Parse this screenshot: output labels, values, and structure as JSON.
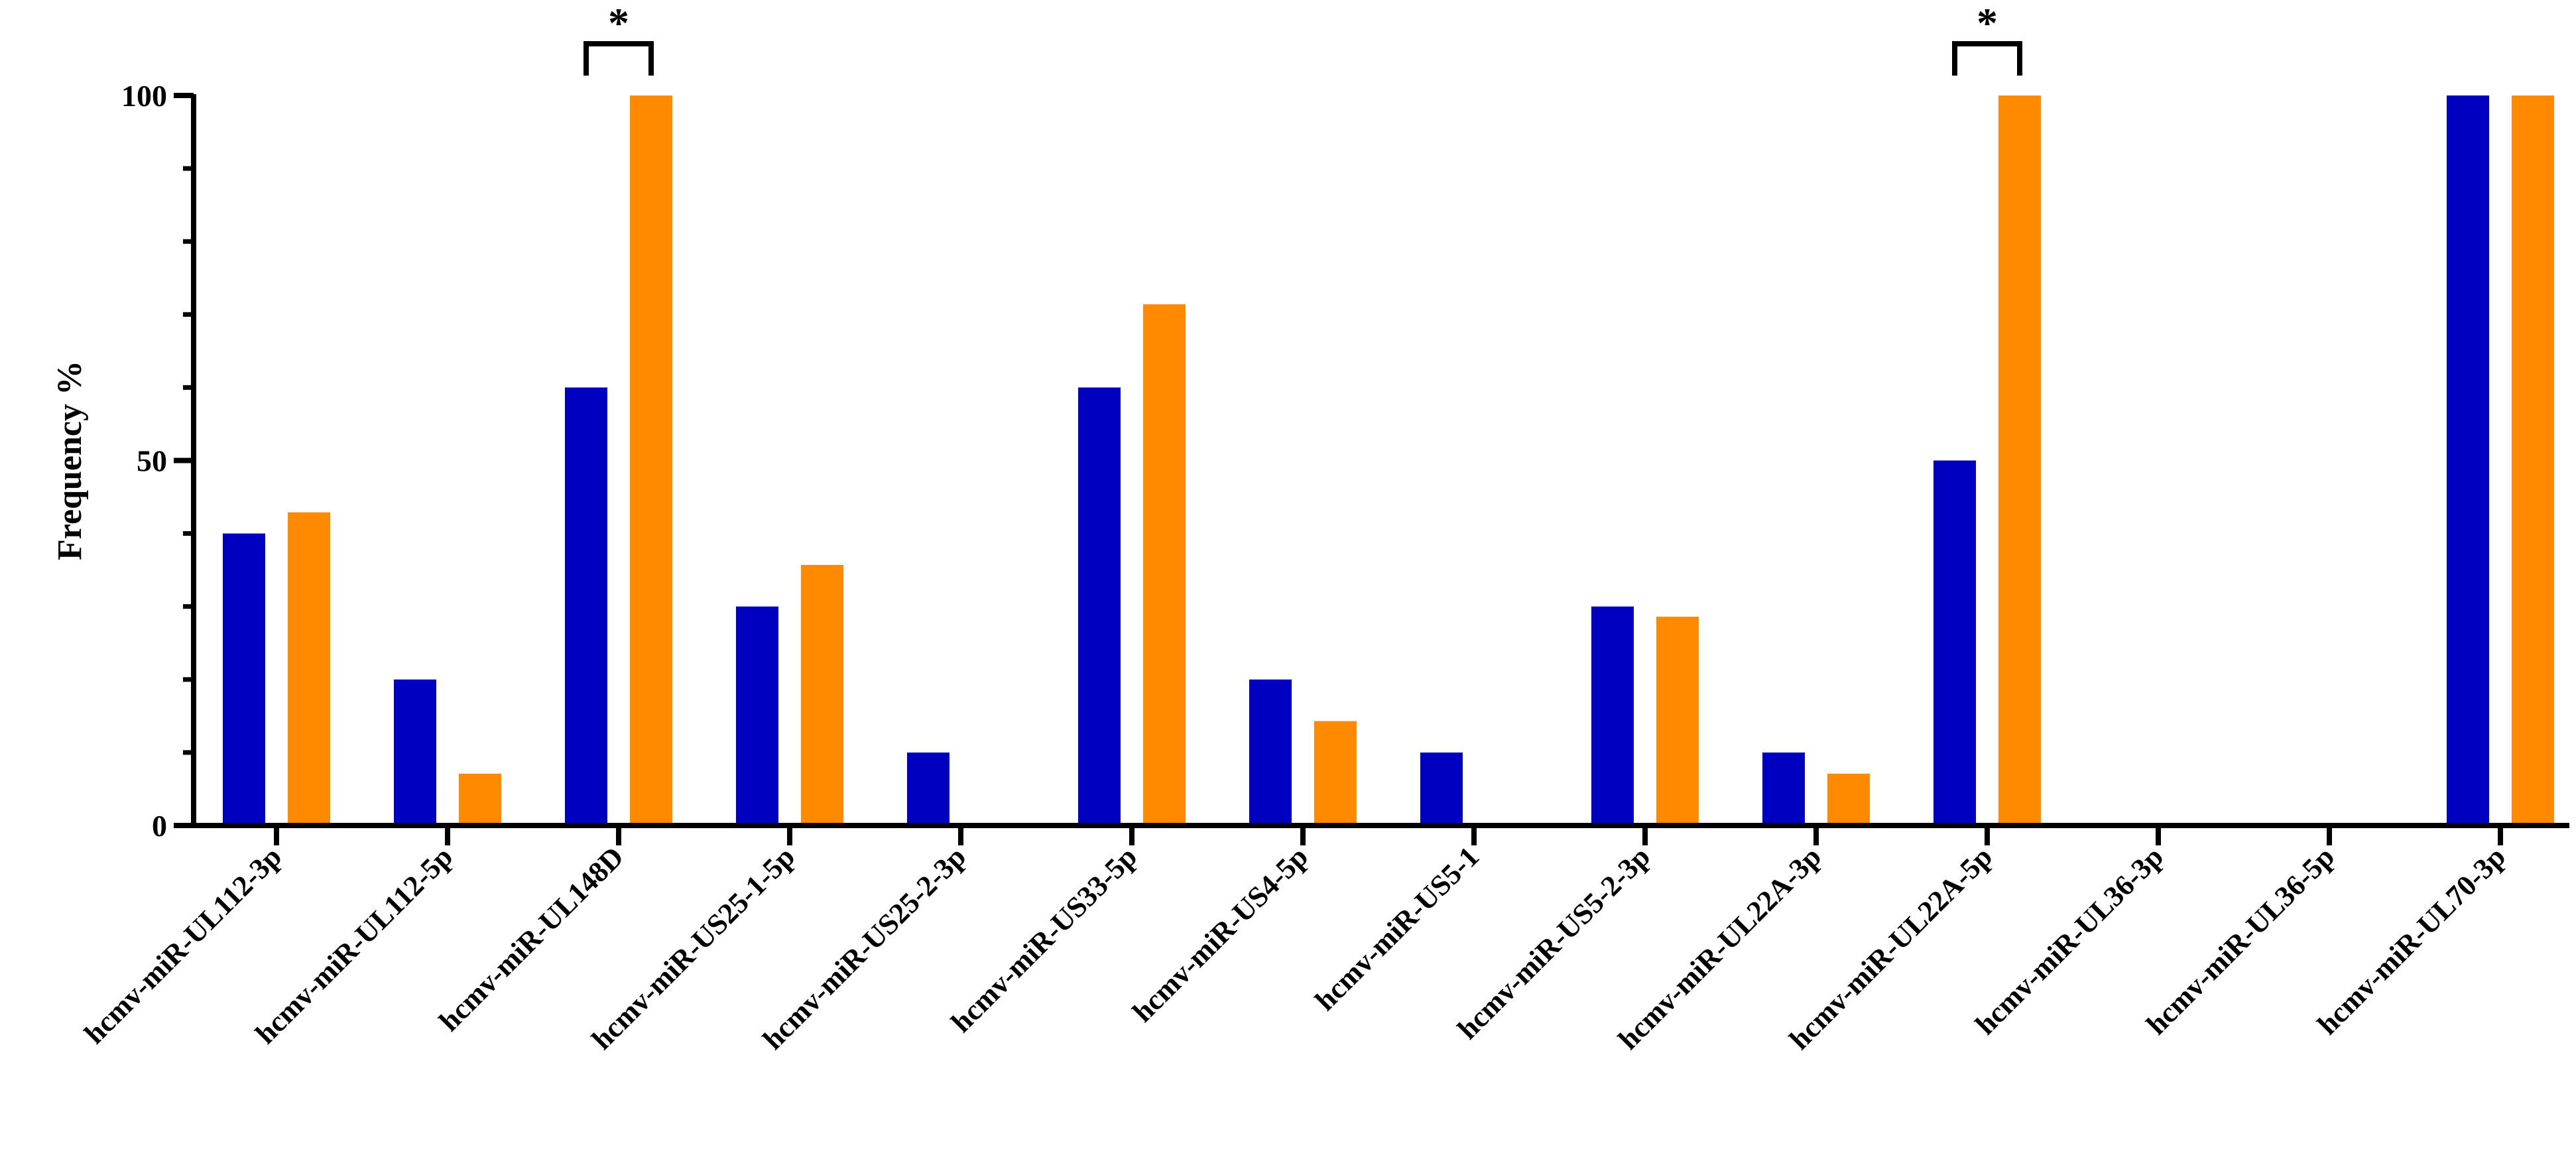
{
  "chart_data": {
    "type": "bar",
    "title": "",
    "xlabel": "",
    "ylabel": "Frequency %",
    "ylim": [
      0,
      100
    ],
    "yticks": [
      0,
      50,
      100
    ],
    "grid": false,
    "legend": "none",
    "categories": [
      "hcmv-miR-UL112-3p",
      "hcmv-miR-UL112-5p",
      "hcmv-miR-UL148D",
      "hcmv-miR-US25-1-5p",
      "hcmv-miR-US25-2-3p",
      "hcmv-miR-US33-5p",
      "hcmv-miR-US4-5p",
      "hcmv-miR-US5-1",
      "hcmv-miR-US5-2-3p",
      "hcmv-miR-UL22A-3p",
      "hcmv-miR-UL22A-5p",
      "hcmv-miR-UL36-3p",
      "hcmv-miR-UL36-5p",
      "hcmv-miR-UL70-3p"
    ],
    "series": [
      {
        "color": "#0000c0",
        "values": [
          40,
          20,
          60,
          30,
          10,
          60,
          20,
          10,
          30,
          10,
          50,
          0,
          0,
          100
        ]
      },
      {
        "color": "#ff8a00",
        "values": [
          42.9,
          7.1,
          100,
          35.7,
          0,
          71.4,
          14.3,
          0,
          28.6,
          7.1,
          100,
          0,
          0,
          100
        ]
      }
    ],
    "annotations": [
      {
        "category_index": 2,
        "text": "*"
      },
      {
        "category_index": 10,
        "text": "*"
      }
    ]
  }
}
